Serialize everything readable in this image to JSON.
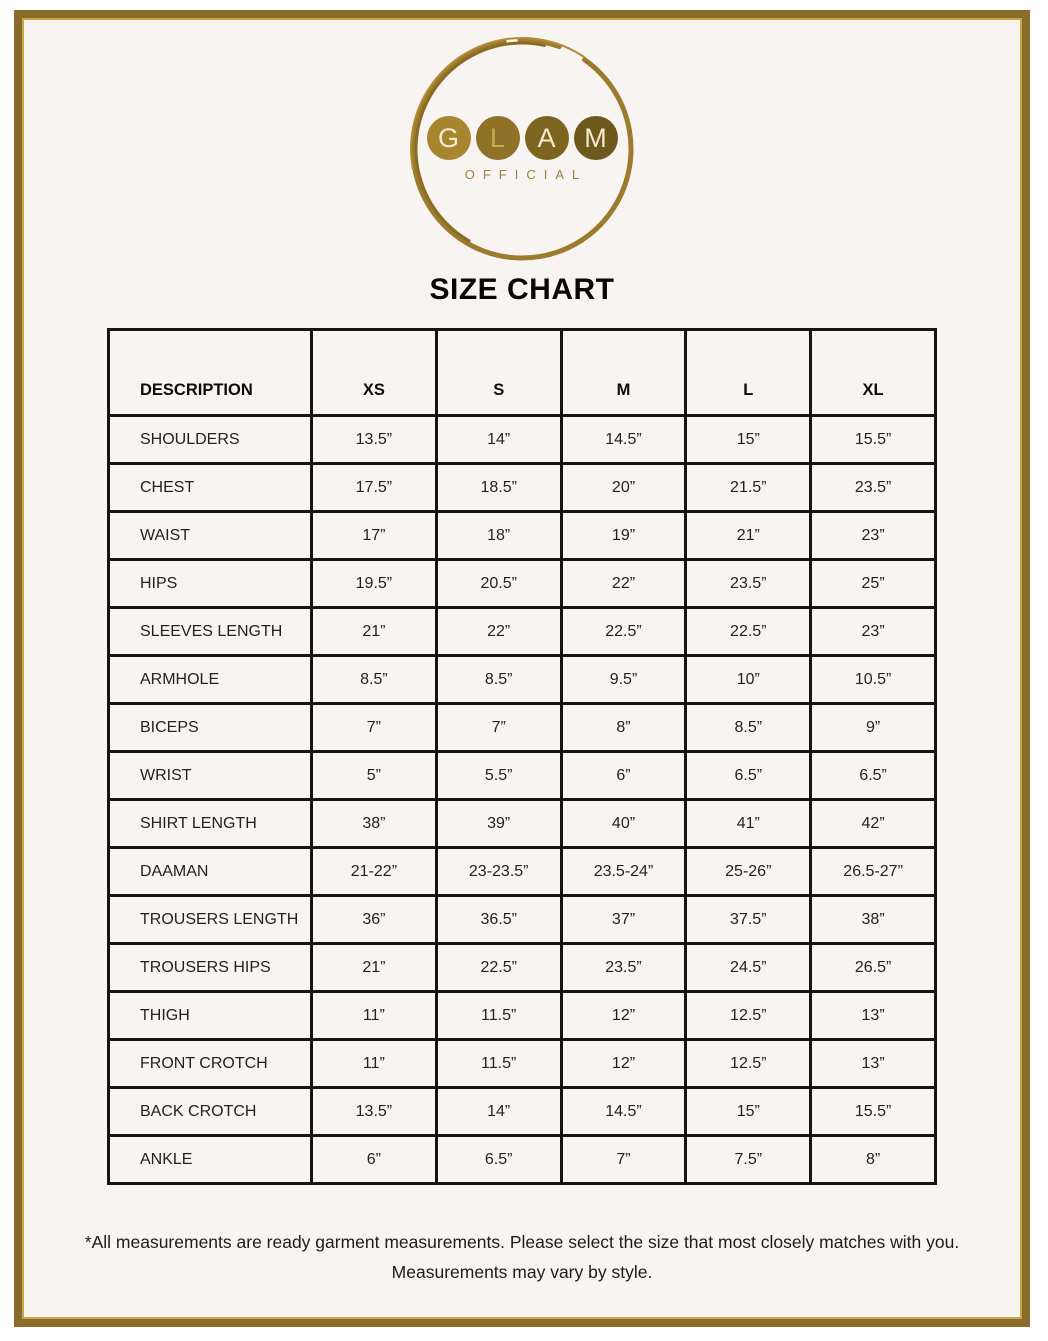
{
  "logo": {
    "letters": [
      {
        "char": "G",
        "bg": "#a8862f",
        "fg": "#f3ead0"
      },
      {
        "char": "L",
        "bg": "#8f7228",
        "fg": "#c9a94e"
      },
      {
        "char": "A",
        "bg": "#7d6520",
        "fg": "#f3ead0"
      },
      {
        "char": "M",
        "bg": "#6d591d",
        "fg": "#f3ead0"
      }
    ],
    "subtitle": "OFFICIAL",
    "ring_color": "#9c7b2c"
  },
  "title": "SIZE CHART",
  "size_chart": {
    "columns": [
      "DESCRIPTION",
      "XS",
      "S",
      "M",
      "L",
      "XL"
    ],
    "rows": [
      {
        "label": "SHOULDERS",
        "values": [
          "13.5”",
          "14”",
          "14.5”",
          "15”",
          "15.5”"
        ]
      },
      {
        "label": "CHEST",
        "values": [
          "17.5”",
          "18.5”",
          "20”",
          "21.5”",
          "23.5”"
        ]
      },
      {
        "label": "WAIST",
        "values": [
          "17”",
          "18”",
          "19”",
          "21”",
          "23”"
        ]
      },
      {
        "label": "HIPS",
        "values": [
          "19.5”",
          "20.5”",
          "22”",
          "23.5”",
          "25”"
        ]
      },
      {
        "label": "SLEEVES LENGTH",
        "values": [
          "21”",
          "22”",
          "22.5”",
          "22.5”",
          "23”"
        ]
      },
      {
        "label": "ARMHOLE",
        "values": [
          "8.5”",
          "8.5”",
          "9.5”",
          "10”",
          "10.5”"
        ]
      },
      {
        "label": "BICEPS",
        "values": [
          "7”",
          "7”",
          "8”",
          "8.5”",
          "9”"
        ]
      },
      {
        "label": "WRIST",
        "values": [
          "5”",
          "5.5”",
          "6”",
          "6.5”",
          "6.5”"
        ]
      },
      {
        "label": "SHIRT LENGTH",
        "values": [
          "38”",
          "39”",
          "40”",
          "41”",
          "42”"
        ]
      },
      {
        "label": "DAAMAN",
        "values": [
          "21-22”",
          "23-23.5”",
          "23.5-24”",
          "25-26”",
          "26.5-27”"
        ]
      },
      {
        "label": "TROUSERS LENGTH",
        "values": [
          "36”",
          "36.5”",
          "37”",
          "37.5”",
          "38”"
        ]
      },
      {
        "label": "TROUSERS HIPS",
        "values": [
          "21”",
          "22.5”",
          "23.5”",
          "24.5”",
          "26.5”"
        ]
      },
      {
        "label": "THIGH",
        "values": [
          "11”",
          "11.5”",
          "12”",
          "12.5”",
          "13”"
        ]
      },
      {
        "label": "FRONT CROTCH",
        "values": [
          "11”",
          "11.5”",
          "12”",
          "12.5”",
          "13”"
        ]
      },
      {
        "label": "BACK CROTCH",
        "values": [
          "13.5”",
          "14”",
          "14.5”",
          "15”",
          "15.5”"
        ]
      },
      {
        "label": "ANKLE",
        "values": [
          "6”",
          "6.5”",
          "7”",
          "7.5”",
          "8”"
        ]
      }
    ]
  },
  "footnote": {
    "line1": "*All measurements are ready garment measurements. Please select the size that most closely matches with you.",
    "line2": "Measurements may vary by style."
  }
}
